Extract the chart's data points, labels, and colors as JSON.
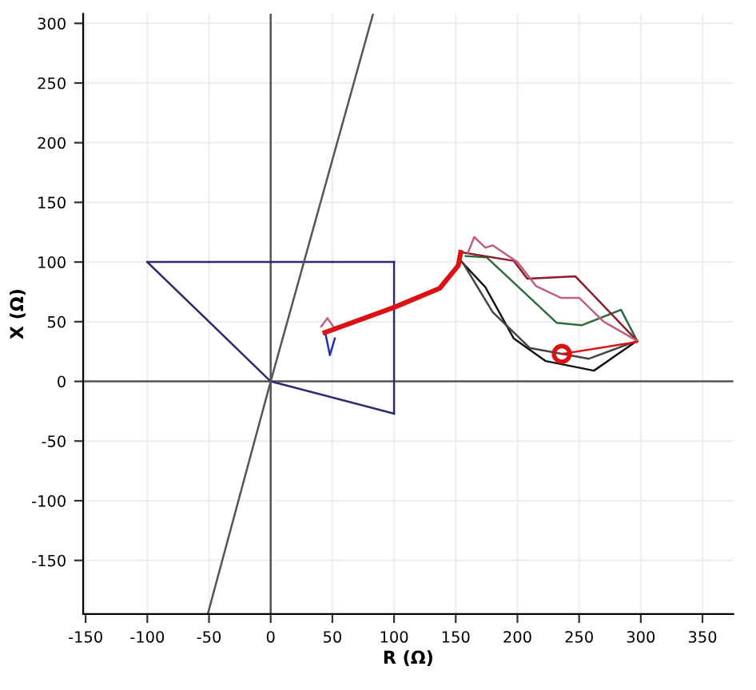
{
  "chart_data": {
    "type": "line",
    "xlabel": "R (Ω)",
    "ylabel": "X (Ω)",
    "xlim": [
      -152,
      375
    ],
    "ylim": [
      -195,
      308
    ],
    "xticks": [
      -150,
      -100,
      -50,
      0,
      50,
      100,
      150,
      200,
      250,
      300,
      350
    ],
    "yticks": [
      -150,
      -100,
      -50,
      0,
      50,
      100,
      150,
      200,
      250,
      300
    ],
    "grid": true,
    "marker": "none",
    "line_style": "solid",
    "series": [
      {
        "color": "#555555",
        "x": [
          0,
          0
        ],
        "values": [
          -195,
          308
        ]
      },
      {
        "color": "#555555",
        "x": [
          -152,
          375
        ],
        "values": [
          0,
          0
        ]
      },
      {
        "color": "#2b2b6e",
        "x": [
          -100,
          100
        ],
        "values": [
          100,
          100
        ]
      },
      {
        "color": "#2b2b6e",
        "x": [
          100,
          100
        ],
        "values": [
          100,
          -27
        ]
      },
      {
        "color": "#2b2b6e",
        "x": [
          -100,
          0,
          100
        ],
        "values": [
          100,
          0,
          -27
        ]
      },
      {
        "color": "#555555",
        "x": [
          -51,
          0,
          83
        ],
        "values": [
          -195,
          0,
          308
        ]
      },
      {
        "color": "#111111",
        "x": [
          154,
          174,
          197,
          223,
          262,
          297
        ],
        "values": [
          101,
          79,
          36,
          17,
          9,
          34
        ]
      },
      {
        "color": "#444444",
        "x": [
          156,
          180,
          210,
          258,
          297
        ],
        "values": [
          99,
          58,
          28,
          19,
          34
        ]
      },
      {
        "color": "#2e6b3a",
        "x": [
          158,
          175,
          232,
          252,
          284,
          297
        ],
        "values": [
          105,
          104,
          49,
          47,
          60,
          34
        ]
      },
      {
        "color": "#8b1a2a",
        "x": [
          156,
          197,
          208,
          247,
          297
        ],
        "values": [
          108,
          101,
          86,
          88,
          34
        ]
      },
      {
        "color": "#c06080",
        "x": [
          160,
          165,
          174,
          180,
          200,
          215,
          235,
          250,
          270,
          297
        ],
        "values": [
          108,
          121,
          112,
          114,
          100,
          80,
          70,
          70,
          50,
          34
        ]
      },
      {
        "color": "#2233aa",
        "x": [
          44,
          48,
          52
        ],
        "values": [
          42,
          22,
          36
        ]
      },
      {
        "color": "#c06080",
        "x": [
          41,
          46,
          52
        ],
        "values": [
          46,
          53,
          44
        ]
      },
      {
        "color": "#dd1111",
        "x": [
          44,
          100,
          137,
          152,
          154
        ],
        "values": [
          41,
          62,
          78,
          97,
          108
        ]
      },
      {
        "color": "#dd1111",
        "x": [
          236,
          297
        ],
        "values": [
          23,
          33
        ]
      },
      {
        "type": "scatter",
        "marker": "circle",
        "color": "#dd1111",
        "x": [
          236
        ],
        "values": [
          23
        ]
      }
    ]
  }
}
